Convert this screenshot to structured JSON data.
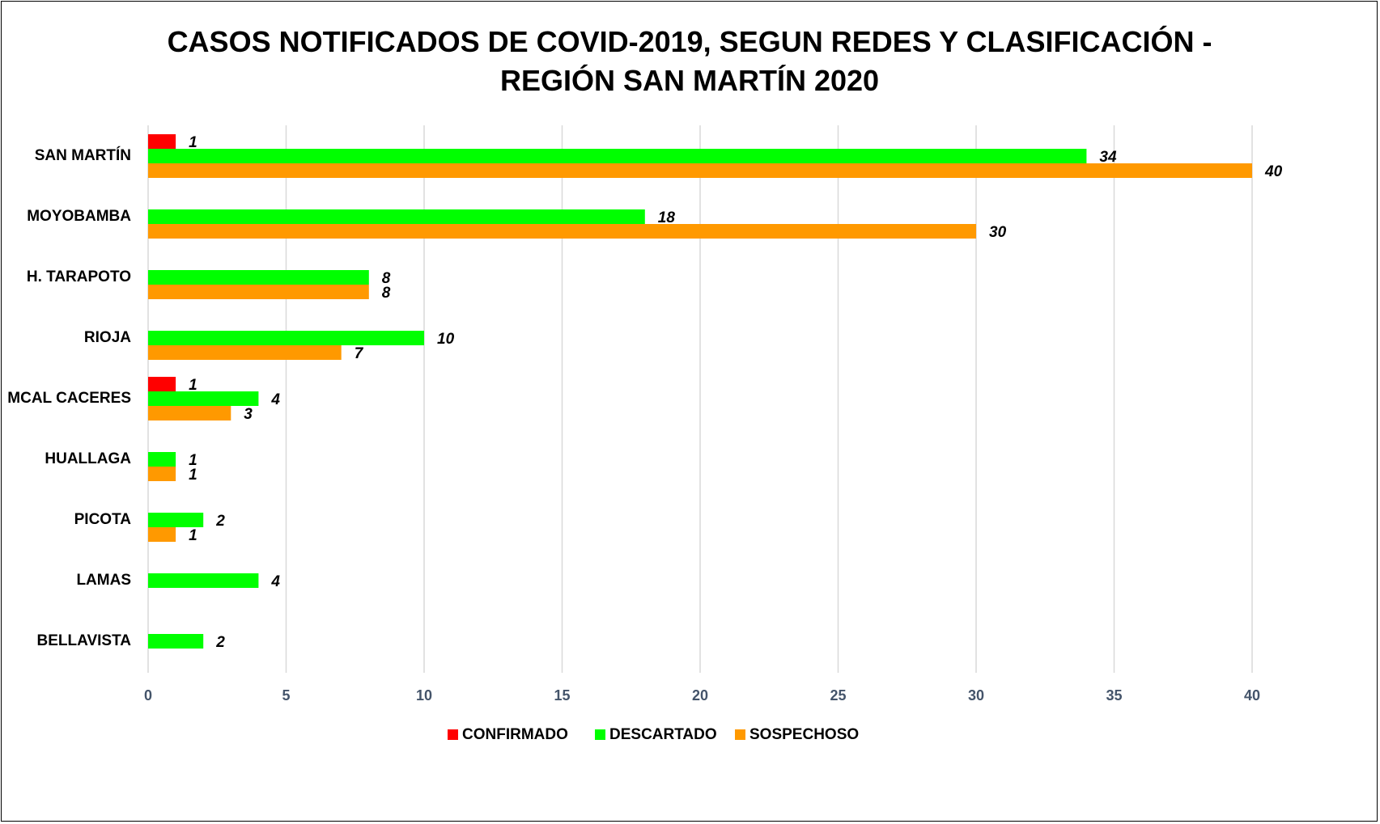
{
  "chart_data": {
    "type": "bar",
    "orientation": "horizontal",
    "title": "CASOS NOTIFICADOS DE COVID-2019, SEGUN REDES Y CLASIFICACIÓN - REGIÓN SAN MARTÍN 2020",
    "categories": [
      "SAN MARTÍN",
      "MOYOBAMBA",
      "H. TARAPOTO",
      "RIOJA",
      "MCAL CACERES",
      "HUALLAGA",
      "PICOTA",
      "LAMAS",
      "BELLAVISTA"
    ],
    "series": [
      {
        "name": "CONFIRMADO",
        "color": "#ff0000",
        "values": [
          1,
          null,
          null,
          null,
          1,
          null,
          null,
          null,
          null
        ]
      },
      {
        "name": "DESCARTADO",
        "color": "#00ff00",
        "values": [
          34,
          18,
          8,
          10,
          4,
          1,
          2,
          4,
          2
        ]
      },
      {
        "name": "SOSPECHOSO",
        "color": "#ff9900",
        "values": [
          40,
          30,
          8,
          7,
          3,
          1,
          1,
          null,
          null
        ]
      }
    ],
    "xlim": [
      0,
      40
    ],
    "xticks": [
      0,
      5,
      10,
      15,
      20,
      25,
      30,
      35,
      40
    ],
    "grid": true,
    "legend": "bottom"
  }
}
